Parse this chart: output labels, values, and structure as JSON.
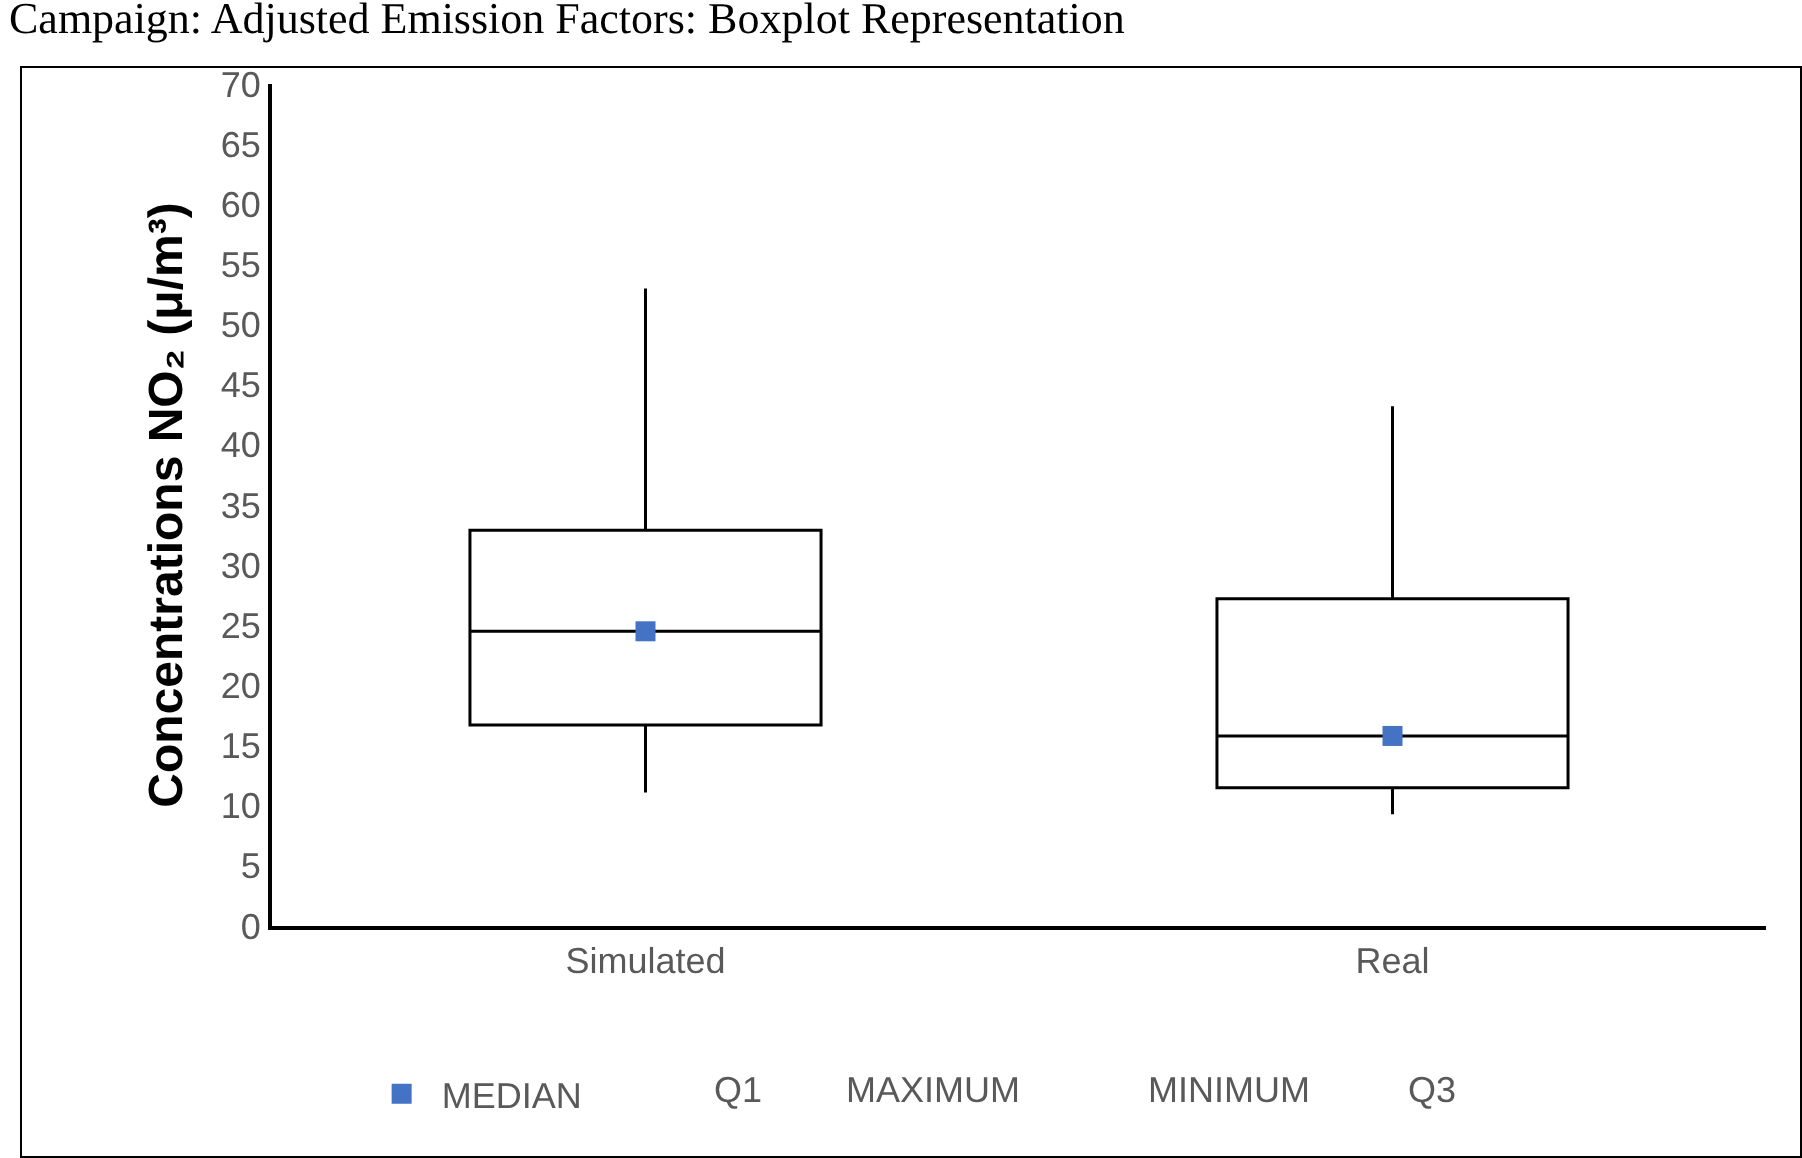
{
  "chart_data": {
    "type": "box",
    "title": "Campaign: Adjusted Emission Factors: Boxplot Representation",
    "ylabel": "Concentrations NO₂ (μ/m³)",
    "categories": [
      "Simulated",
      "Real"
    ],
    "series": [
      {
        "color": "#000000",
        "boxes": [
          {
            "low": 11.1,
            "q1": 16.7,
            "median": 24.5,
            "q3": 32.9,
            "high": 53
          },
          {
            "low": 9.3,
            "q1": 11.5,
            "median": 15.8,
            "q3": 27.2,
            "high": 43.2
          }
        ]
      },
      {
        "name": "MEDIAN",
        "type": "scatter",
        "marker": "square",
        "color": "#4472c4",
        "values": [
          24.5,
          15.8
        ]
      }
    ],
    "annotations": [
      "Q1",
      "MAXIMUM",
      "MINIMUM",
      "Q3"
    ],
    "ylim": [
      0,
      70
    ],
    "yticks": [
      0,
      5,
      10,
      15,
      20,
      25,
      30,
      35,
      40,
      45,
      50,
      55,
      60,
      65,
      70
    ],
    "grid": false,
    "legend": "bottom"
  }
}
